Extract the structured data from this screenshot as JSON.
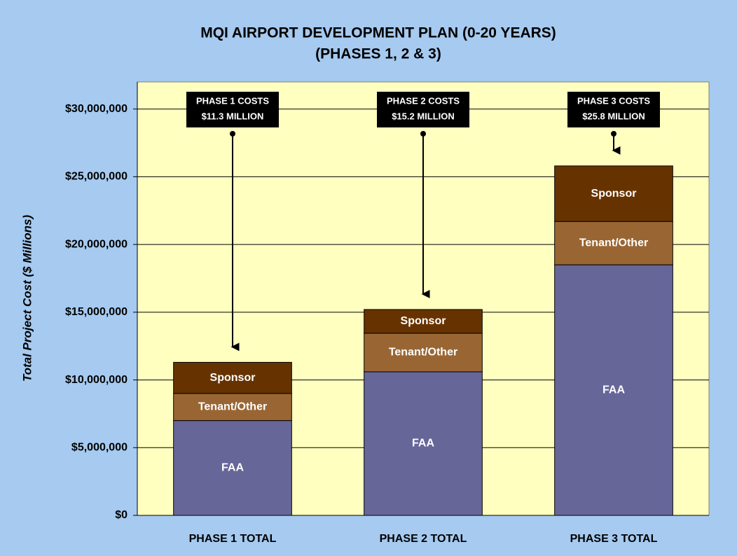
{
  "chart_data": {
    "type": "stacked_bar",
    "title": "MQI AIRPORT DEVELOPMENT PLAN (0-20 YEARS)",
    "subtitle": "(PHASES 1, 2 & 3)",
    "y_label": "Total Project Cost ($ Millions)",
    "categories": [
      "PHASE 1 TOTAL",
      "PHASE 2 TOTAL",
      "PHASE 3 TOTAL"
    ],
    "series": [
      {
        "name": "FAA",
        "color": "#666699",
        "values": [
          7000000,
          10600000,
          18500000
        ]
      },
      {
        "name": "Tenant/Other",
        "color": "#996633",
        "values": [
          2000000,
          2850000,
          3200000
        ]
      },
      {
        "name": "Sponsor",
        "color": "#663300",
        "values": [
          2300000,
          1750000,
          4100000
        ]
      }
    ],
    "annotations": [
      [
        "PHASE 1 COSTS",
        "$11.3 MILLION"
      ],
      [
        "PHASE 2 COSTS",
        "$15.2 MILLION"
      ],
      [
        "PHASE 3 COSTS",
        "$25.8 MILLION"
      ]
    ],
    "ylim": [
      0,
      32000000
    ],
    "yticks": [
      {
        "value": 0,
        "label": "$0"
      },
      {
        "value": 5000000,
        "label": "$5,000,000"
      },
      {
        "value": 10000000,
        "label": "$10,000,000"
      },
      {
        "value": 15000000,
        "label": "$15,000,000"
      },
      {
        "value": 20000000,
        "label": "$20,000,000"
      },
      {
        "value": 25000000,
        "label": "$25,000,000"
      },
      {
        "value": 30000000,
        "label": "$30,000,000"
      }
    ],
    "grid": true
  }
}
